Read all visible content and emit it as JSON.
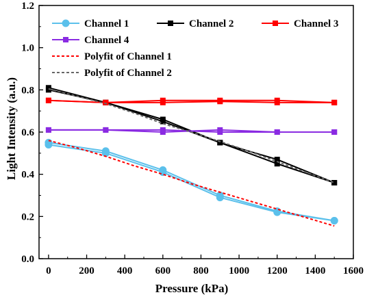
{
  "chart_data": {
    "type": "line",
    "title": "",
    "xlabel": "Pressure (kPa)",
    "ylabel": "Light Intensity (a.u.)",
    "xlim": [
      -50,
      1600
    ],
    "ylim": [
      0.0,
      1.2
    ],
    "xticks": [
      0,
      200,
      400,
      600,
      800,
      1000,
      1200,
      1400,
      1600
    ],
    "yticks": [
      0.0,
      0.2,
      0.4,
      0.6,
      0.8,
      1.0,
      1.2
    ],
    "xtick_labels": [
      "0",
      "200",
      "400",
      "600",
      "800",
      "1000",
      "1200",
      "1400",
      "1600"
    ],
    "ytick_labels": [
      "0.0",
      "0.2",
      "0.4",
      "0.6",
      "0.8",
      "1.0",
      "1.2"
    ],
    "grid": false,
    "legend_position": "top",
    "x": [
      0,
      300,
      600,
      900,
      1200,
      1500
    ],
    "series": [
      {
        "name": "Channel 1",
        "color": "#5bc0eb",
        "marker": "circle",
        "style": "solid",
        "runs": [
          [
            0.55,
            0.51,
            0.42,
            0.3,
            0.225,
            0.18
          ],
          [
            0.54,
            0.5,
            0.41,
            0.29,
            0.22,
            0.18
          ]
        ]
      },
      {
        "name": "Channel 2",
        "color": "#000000",
        "marker": "square",
        "style": "solid",
        "runs": [
          [
            0.81,
            0.74,
            0.66,
            0.55,
            0.47,
            0.36
          ],
          [
            0.8,
            0.74,
            0.65,
            0.55,
            0.45,
            0.36
          ]
        ]
      },
      {
        "name": "Channel 3",
        "color": "#ff0000",
        "marker": "square",
        "style": "solid",
        "runs": [
          [
            0.75,
            0.74,
            0.75,
            0.75,
            0.75,
            0.74
          ],
          [
            0.75,
            0.74,
            0.74,
            0.745,
            0.74,
            0.74
          ]
        ]
      },
      {
        "name": "Channel 4",
        "color": "#8a2be2",
        "marker": "square",
        "style": "solid",
        "runs": [
          [
            0.61,
            0.61,
            0.6,
            0.61,
            0.6,
            0.6
          ],
          [
            0.61,
            0.61,
            0.61,
            0.6,
            0.6,
            0.6
          ]
        ]
      },
      {
        "name": "Polyfit of Channel 1",
        "color": "#ff0000",
        "marker": "none",
        "style": "dashed",
        "x": [
          0,
          150,
          300,
          450,
          600,
          750,
          900,
          1050,
          1200,
          1350,
          1500
        ],
        "values": [
          0.56,
          0.525,
          0.485,
          0.44,
          0.4,
          0.355,
          0.315,
          0.275,
          0.235,
          0.195,
          0.155
        ]
      },
      {
        "name": "Polyfit of Channel 2",
        "color": "#666666",
        "marker": "none",
        "style": "dashed",
        "x": [
          0,
          150,
          300,
          450,
          600,
          750,
          900,
          1050,
          1200,
          1350,
          1500
        ],
        "values": [
          0.805,
          0.77,
          0.735,
          0.69,
          0.64,
          0.6,
          0.555,
          0.51,
          0.46,
          0.41,
          0.36
        ]
      }
    ]
  }
}
